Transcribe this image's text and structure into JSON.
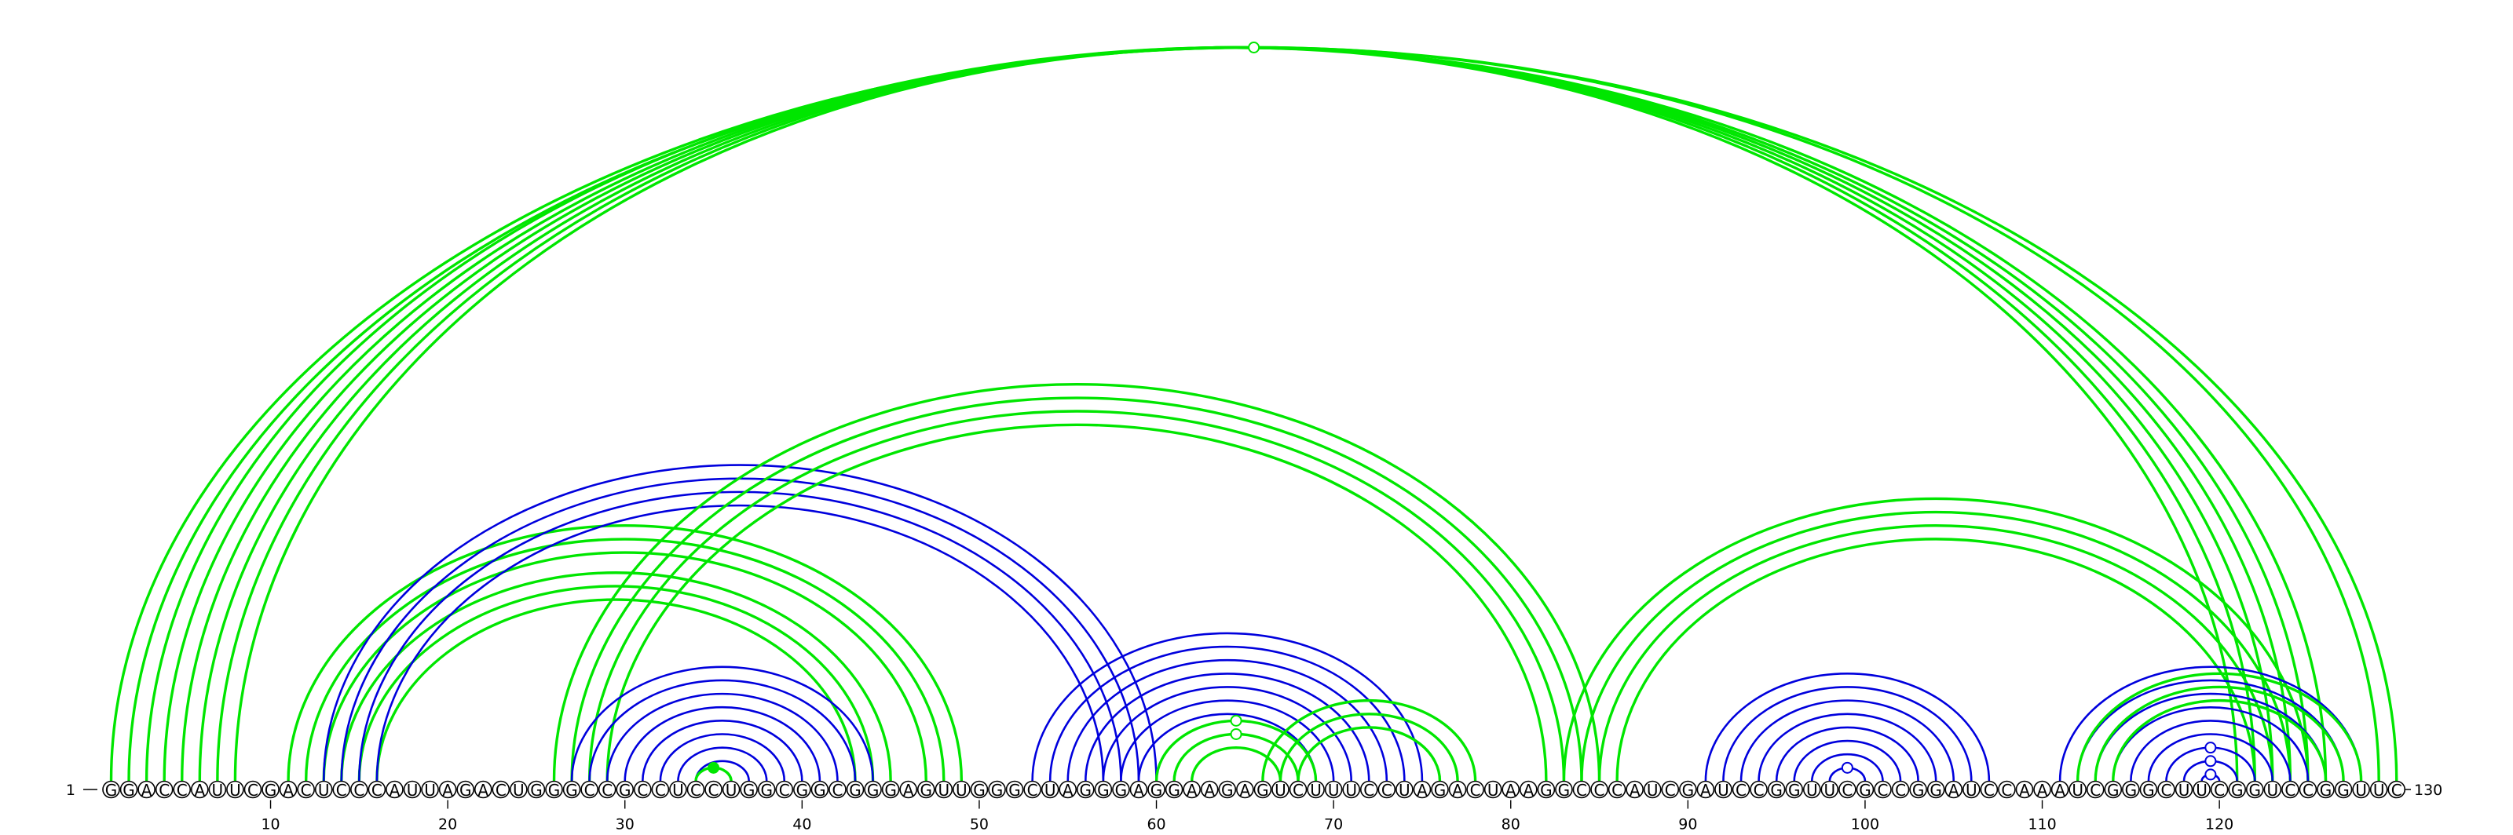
{
  "sequence": {
    "letters": "GGACCAUUCGACUCCCAUUAGACUGGGCCGCCUCCUGGCGGCGGGAGUUGGGCUAGGGAGGAAGAGUCUUUCCUAGACUAAGGCCCAUCGAUCCGGUUCGCCGGAUCCAAAUCGGGCUUCGGUCCGGUUC",
    "start_label": "1",
    "end_label": "130",
    "tick_labels": [
      "10",
      "20",
      "30",
      "40",
      "50",
      "60",
      "70",
      "80",
      "90",
      "100",
      "110",
      "120"
    ]
  },
  "colors": {
    "green": "#00e600",
    "blue": "#0000dd",
    "circle_stroke": "#000000"
  },
  "arc_pairs": {
    "green_outer": [
      [
        1,
        130
      ],
      [
        2,
        129
      ],
      [
        3,
        126
      ],
      [
        4,
        125
      ],
      [
        5,
        124
      ],
      [
        6,
        123
      ],
      [
        7,
        122
      ],
      [
        8,
        121
      ]
    ],
    "green_mid_left": [
      [
        11,
        49
      ],
      [
        12,
        48
      ],
      [
        13,
        47
      ],
      [
        14,
        45
      ],
      [
        15,
        44
      ],
      [
        16,
        43
      ]
    ],
    "blue_mid_left": [
      [
        13,
        60
      ],
      [
        14,
        59
      ],
      [
        15,
        58
      ],
      [
        16,
        57
      ]
    ],
    "green_mid_right": [
      [
        26,
        85
      ],
      [
        27,
        84
      ],
      [
        28,
        83
      ],
      [
        29,
        82
      ]
    ],
    "blue_hairpin_1": [
      [
        27,
        44
      ],
      [
        28,
        43
      ],
      [
        29,
        42
      ],
      [
        30,
        41
      ],
      [
        31,
        40
      ],
      [
        32,
        39
      ],
      [
        33,
        38
      ],
      [
        34,
        37
      ]
    ],
    "green_hairpin_1": [
      [
        34,
        36
      ]
    ],
    "blue_hairpin_2": [
      [
        53,
        75
      ],
      [
        54,
        74
      ],
      [
        55,
        73
      ],
      [
        56,
        72
      ],
      [
        57,
        71
      ],
      [
        58,
        70
      ],
      [
        59,
        69
      ]
    ],
    "green_hairpin_2": [
      [
        60,
        69
      ],
      [
        61,
        68
      ],
      [
        62,
        67
      ]
    ],
    "green_hairpin_3": [
      [
        66,
        78
      ],
      [
        67,
        77
      ],
      [
        68,
        76
      ]
    ],
    "green_right": [
      [
        83,
        125
      ],
      [
        84,
        124
      ],
      [
        85,
        123
      ],
      [
        86,
        122
      ]
    ],
    "blue_hairpin_4": [
      [
        91,
        107
      ],
      [
        92,
        106
      ],
      [
        93,
        105
      ],
      [
        94,
        104
      ],
      [
        95,
        103
      ],
      [
        96,
        102
      ],
      [
        97,
        101
      ],
      [
        98,
        100
      ]
    ],
    "blue_hairpin_5": [
      [
        111,
        128
      ],
      [
        112,
        127
      ],
      [
        113,
        126
      ],
      [
        114,
        125
      ],
      [
        115,
        124
      ],
      [
        116,
        123
      ],
      [
        117,
        122
      ],
      [
        118,
        121
      ],
      [
        119,
        120
      ]
    ],
    "green_hairpin_5": [
      [
        112,
        128
      ],
      [
        113,
        127
      ],
      [
        114,
        126
      ]
    ]
  },
  "markers": [
    {
      "i": 1,
      "j": 130,
      "color": "green",
      "fill": "open"
    },
    {
      "i": 60,
      "j": 69,
      "color": "green",
      "fill": "open"
    },
    {
      "i": 61,
      "j": 68,
      "color": "green",
      "fill": "open"
    },
    {
      "i": 34,
      "j": 36,
      "color": "green",
      "fill": "solid"
    },
    {
      "i": 98,
      "j": 100,
      "color": "blue",
      "fill": "open"
    },
    {
      "i": 117,
      "j": 122,
      "color": "blue",
      "fill": "open"
    },
    {
      "i": 118,
      "j": 121,
      "color": "blue",
      "fill": "open"
    },
    {
      "i": 119,
      "j": 120,
      "color": "blue",
      "fill": "open"
    }
  ]
}
